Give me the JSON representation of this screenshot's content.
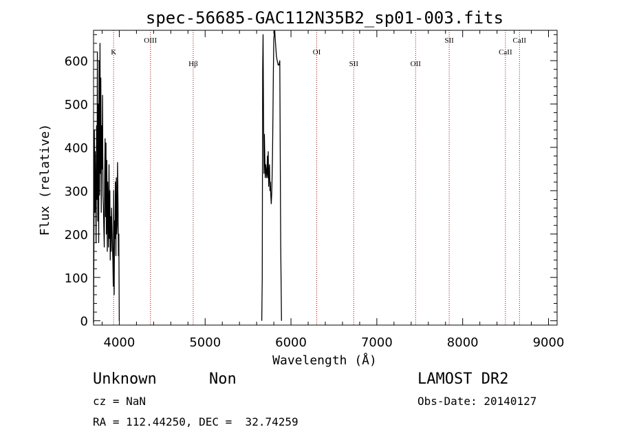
{
  "chart_data": {
    "type": "line",
    "title": "spec-56685-GAC112N35B2_sp01-003.fits",
    "xlabel": "Wavelength (Å)",
    "ylabel": "Flux (relative)",
    "xlim": [
      3700,
      9100
    ],
    "ylim": [
      -10,
      670
    ],
    "xticks": [
      4000,
      5000,
      6000,
      7000,
      8000,
      9000
    ],
    "xtick_labels": [
      "4000",
      "5000",
      "6000",
      "7000",
      "8000",
      "9000"
    ],
    "yticks": [
      0,
      100,
      200,
      300,
      400,
      500,
      600
    ],
    "ytick_labels": [
      "0",
      "100",
      "200",
      "300",
      "400",
      "500",
      "600"
    ],
    "grid": false,
    "line_color": "#000000",
    "marker_color": "#8b0000",
    "lines": [
      {
        "label": "K",
        "x": 3934,
        "level": "low"
      },
      {
        "label": "OIII",
        "x": 4363,
        "level": "high"
      },
      {
        "label": "Hβ",
        "x": 4861,
        "level": "mid"
      },
      {
        "label": "OI",
        "x": 6300,
        "level": "low"
      },
      {
        "label": "SII",
        "x": 6731,
        "level": "mid"
      },
      {
        "label": "OII",
        "x": 7452,
        "level": "mid"
      },
      {
        "label": "SII",
        "x": 7843,
        "level": "high"
      },
      {
        "label": "CaII",
        "x": 8498,
        "level": "low"
      },
      {
        "label": "CaII",
        "x": 8662,
        "level": "high"
      }
    ],
    "series": [
      {
        "segments": [
          {
            "x": [
              3700,
              3705,
              3710,
              3715,
              3720,
              3725,
              3730,
              3735,
              3740,
              3745,
              3750,
              3755,
              3760,
              3765,
              3770,
              3775,
              3780,
              3785,
              3790,
              3795,
              3800,
              3805,
              3810,
              3815,
              3820,
              3825,
              3830,
              3835,
              3840,
              3845,
              3850,
              3855,
              3860,
              3865,
              3870,
              3875,
              3880,
              3885,
              3890,
              3895,
              3900,
              3905,
              3910,
              3915,
              3920,
              3925,
              3930,
              3935,
              3940,
              3945,
              3950,
              3955,
              3960,
              3965,
              3970,
              3975,
              3980,
              3985,
              3990,
              3995,
              4000
            ],
            "y": [
              -5,
              200,
              440,
              250,
              390,
              300,
              180,
              450,
              280,
              620,
              230,
              500,
              180,
              600,
              290,
              640,
              340,
              560,
              250,
              450,
              350,
              520,
              290,
              260,
              210,
              170,
              330,
              420,
              240,
              410,
              200,
              370,
              160,
              320,
              270,
              170,
              360,
              190,
              300,
              140,
              240,
              160,
              260,
              220,
              170,
              140,
              80,
              300,
              60,
              230,
              190,
              320,
              150,
              330,
              200,
              220,
              365,
              270,
              150,
              200,
              0
            ]
          },
          {
            "x": [
              5660,
              5665,
              5670,
              5675,
              5680,
              5685,
              5690,
              5695,
              5700,
              5705,
              5710,
              5715,
              5720,
              5725,
              5730,
              5735,
              5740,
              5745,
              5750,
              5755,
              5760,
              5765,
              5770,
              5775,
              5780,
              5785,
              5790,
              5795,
              5800,
              5810,
              5820,
              5830,
              5840,
              5850,
              5860,
              5870,
              5880,
              5890
            ],
            "y": [
              0,
              100,
              580,
              660,
              490,
              340,
              430,
              380,
              330,
              360,
              350,
              330,
              340,
              380,
              330,
              390,
              310,
              340,
              360,
              300,
              320,
              290,
              270,
              290,
              330,
              380,
              480,
              580,
              650,
              670,
              640,
              610,
              600,
              590,
              590,
              600,
              180,
              0
            ]
          }
        ]
      }
    ]
  },
  "footer": {
    "object_type": "Unknown",
    "subclass": "Non",
    "survey": "LAMOST DR2",
    "redshift": "cz = NaN",
    "obs_date": "Obs-Date: 20140127",
    "coords": "RA = 112.44250, DEC =  32.74259"
  }
}
